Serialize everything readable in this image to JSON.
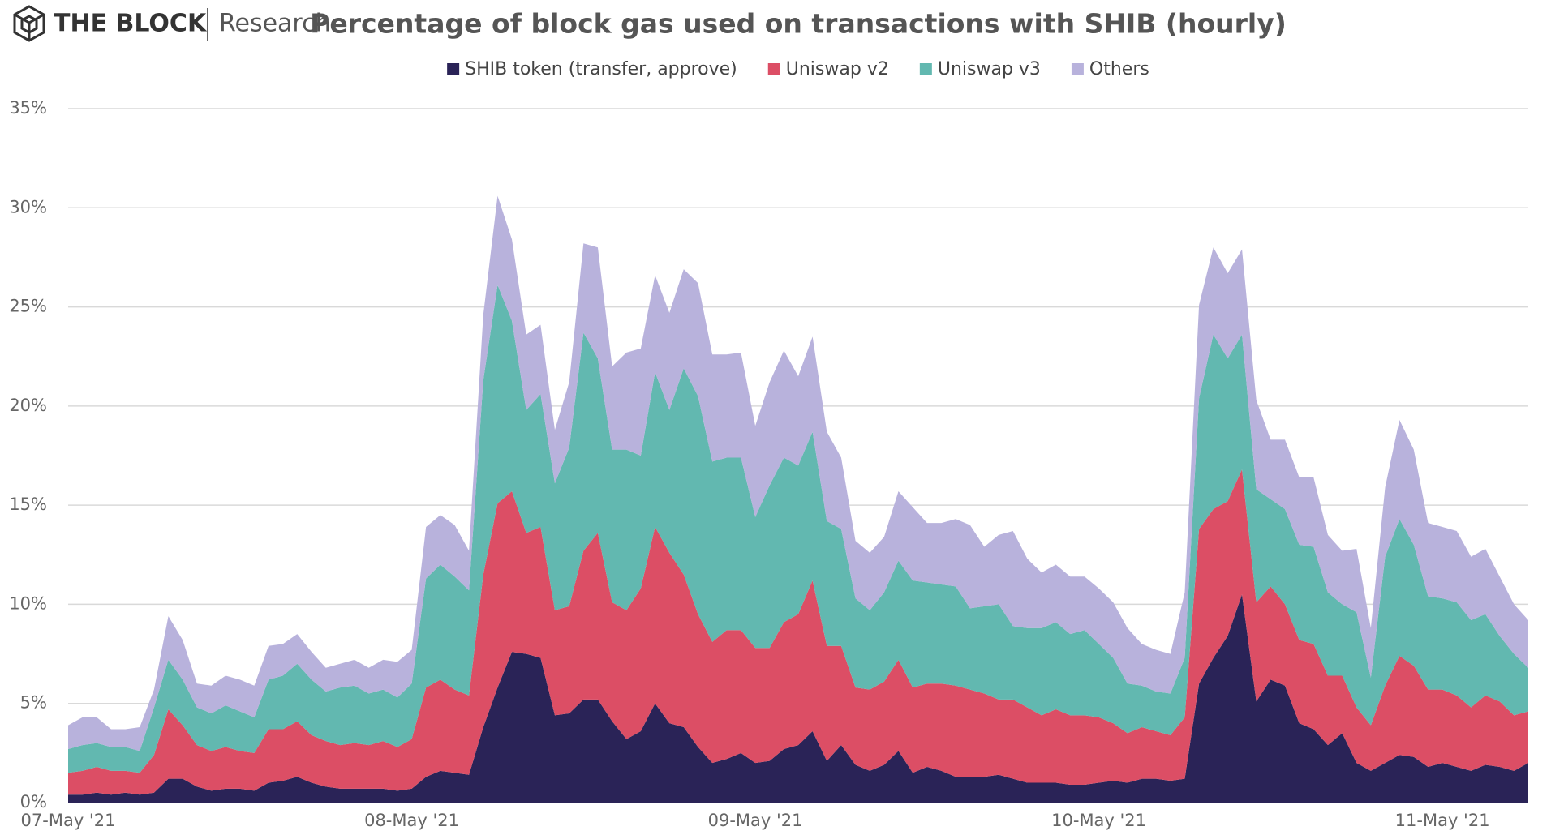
{
  "chart_data": {
    "type": "stacked-area",
    "brand": "THE BLOCK",
    "brand_sub": "Research",
    "title": "Percentage of block gas used on transactions with SHIB (hourly)",
    "categories": [
      "07-May '21",
      null,
      null,
      null,
      null,
      null,
      null,
      null,
      null,
      null,
      null,
      null,
      null,
      null,
      null,
      null,
      null,
      null,
      null,
      null,
      null,
      null,
      null,
      null,
      "08-May '21",
      null,
      null,
      null,
      null,
      null,
      null,
      null,
      null,
      null,
      null,
      null,
      null,
      null,
      null,
      null,
      null,
      null,
      null,
      null,
      null,
      null,
      null,
      null,
      "09-May '21",
      null,
      null,
      null,
      null,
      null,
      null,
      null,
      null,
      null,
      null,
      null,
      null,
      null,
      null,
      null,
      null,
      null,
      null,
      null,
      null,
      null,
      null,
      null,
      "10-May '21",
      null,
      null,
      null,
      null,
      null,
      null,
      null,
      null,
      null,
      null,
      null,
      null,
      null,
      null,
      null,
      null,
      null,
      null,
      null,
      null,
      null,
      null,
      null,
      "11-May '21",
      null,
      null,
      null,
      null,
      null,
      null
    ],
    "series": [
      {
        "name": "SHIB token (transfer, approve)",
        "color": "#2a2357",
        "values": [
          0.4,
          0.4,
          0.5,
          0.4,
          0.5,
          0.4,
          0.5,
          1.2,
          1.2,
          0.8,
          0.6,
          0.7,
          0.7,
          0.6,
          1.0,
          1.1,
          1.3,
          1.0,
          0.8,
          0.7,
          0.7,
          0.7,
          0.7,
          0.6,
          0.7,
          1.3,
          1.6,
          1.5,
          1.4,
          3.8,
          5.8,
          7.6,
          7.5,
          7.3,
          4.4,
          4.5,
          5.2,
          5.2,
          4.1,
          3.2,
          3.6,
          5.0,
          4.0,
          3.8,
          2.8,
          2.0,
          2.2,
          2.5,
          2.0,
          2.1,
          2.7,
          2.9,
          3.6,
          2.1,
          2.9,
          1.9,
          1.6,
          1.9,
          2.6,
          1.5,
          1.8,
          1.6,
          1.3,
          1.3,
          1.3,
          1.4,
          1.2,
          1.0,
          1.0,
          1.0,
          0.9,
          0.9,
          1.0,
          1.1,
          1.0,
          1.2,
          1.2,
          1.1,
          1.2,
          6.0,
          7.3,
          8.4,
          10.5,
          5.1,
          6.2,
          5.9,
          4.0,
          3.7,
          2.9,
          3.5,
          2.0,
          1.6,
          2.0,
          2.4,
          2.3,
          1.8,
          2.0,
          1.8,
          1.6,
          1.9,
          1.8,
          1.6,
          2.0
        ]
      },
      {
        "name": "Uniswap v2",
        "color": "#dc4e65",
        "values": [
          1.1,
          1.2,
          1.3,
          1.2,
          1.1,
          1.1,
          1.9,
          3.5,
          2.7,
          2.1,
          2.0,
          2.1,
          1.9,
          1.9,
          2.7,
          2.6,
          2.8,
          2.4,
          2.3,
          2.2,
          2.3,
          2.2,
          2.4,
          2.2,
          2.5,
          4.5,
          4.6,
          4.2,
          4.0,
          7.7,
          9.3,
          8.1,
          6.1,
          6.6,
          5.3,
          5.4,
          7.5,
          8.4,
          6.0,
          6.5,
          7.2,
          8.9,
          8.6,
          7.7,
          6.7,
          6.1,
          6.5,
          6.2,
          5.8,
          5.7,
          6.4,
          6.6,
          7.6,
          5.8,
          5.0,
          3.9,
          4.1,
          4.2,
          4.6,
          4.3,
          4.2,
          4.4,
          4.6,
          4.4,
          4.2,
          3.8,
          4.0,
          3.8,
          3.4,
          3.7,
          3.5,
          3.5,
          3.3,
          2.9,
          2.5,
          2.6,
          2.4,
          2.3,
          3.1,
          7.8,
          7.5,
          6.8,
          6.3,
          5.0,
          4.7,
          4.1,
          4.2,
          4.3,
          3.5,
          2.9,
          2.8,
          2.3,
          3.9,
          5.0,
          4.6,
          3.9,
          3.7,
          3.6,
          3.2,
          3.5,
          3.3,
          2.8,
          2.6
        ]
      },
      {
        "name": "Uniswap v3",
        "color": "#62b8b0",
        "values": [
          1.2,
          1.3,
          1.2,
          1.2,
          1.2,
          1.1,
          2.4,
          2.5,
          2.3,
          1.9,
          1.9,
          2.1,
          2.0,
          1.8,
          2.5,
          2.7,
          2.9,
          2.8,
          2.5,
          2.9,
          2.9,
          2.6,
          2.6,
          2.5,
          2.8,
          5.5,
          5.8,
          5.7,
          5.3,
          9.8,
          11.0,
          8.6,
          6.2,
          6.7,
          6.4,
          8.0,
          11.0,
          8.8,
          7.7,
          8.1,
          6.7,
          7.8,
          7.2,
          10.4,
          11.0,
          9.1,
          8.7,
          8.7,
          6.6,
          8.2,
          8.3,
          7.5,
          7.5,
          6.3,
          5.9,
          4.5,
          4.0,
          4.5,
          5.0,
          5.4,
          5.1,
          5.0,
          5.0,
          4.1,
          4.4,
          4.8,
          3.7,
          4.0,
          4.4,
          4.4,
          4.1,
          4.3,
          3.7,
          3.3,
          2.5,
          2.1,
          2.0,
          2.1,
          3.0,
          6.6,
          8.8,
          7.2,
          6.8,
          5.7,
          4.4,
          4.8,
          4.8,
          4.9,
          4.2,
          3.6,
          4.8,
          2.4,
          6.5,
          6.9,
          6.1,
          4.7,
          4.6,
          4.7,
          4.4,
          4.1,
          3.3,
          3.1,
          2.2
        ]
      },
      {
        "name": "Others",
        "color": "#b8b2dc",
        "values": [
          1.2,
          1.4,
          1.3,
          0.9,
          0.9,
          1.2,
          0.9,
          2.2,
          2.0,
          1.2,
          1.4,
          1.5,
          1.6,
          1.6,
          1.7,
          1.6,
          1.5,
          1.4,
          1.2,
          1.2,
          1.3,
          1.3,
          1.5,
          1.8,
          1.7,
          2.6,
          2.5,
          2.6,
          2.0,
          3.3,
          4.5,
          4.1,
          3.8,
          3.5,
          2.7,
          3.3,
          4.5,
          5.6,
          4.2,
          4.9,
          5.4,
          4.9,
          4.9,
          5.0,
          5.7,
          5.4,
          5.2,
          5.3,
          4.6,
          5.2,
          5.4,
          4.5,
          4.8,
          4.5,
          3.6,
          2.9,
          2.9,
          2.8,
          3.5,
          3.7,
          3.0,
          3.1,
          3.4,
          4.2,
          3.0,
          3.5,
          4.8,
          3.5,
          2.8,
          2.9,
          2.9,
          2.7,
          2.8,
          2.8,
          2.8,
          2.1,
          2.1,
          2.0,
          3.3,
          4.7,
          4.4,
          4.3,
          4.3,
          4.5,
          3.0,
          3.5,
          3.4,
          3.5,
          2.9,
          2.7,
          3.2,
          2.5,
          3.5,
          5.0,
          4.8,
          3.7,
          3.6,
          3.6,
          3.2,
          3.3,
          3.0,
          2.5,
          2.4
        ]
      }
    ],
    "ylim": [
      0,
      35
    ],
    "yticks": [
      {
        "value": 0,
        "label": "0%"
      },
      {
        "value": 5,
        "label": "5%"
      },
      {
        "value": 10,
        "label": "10%"
      },
      {
        "value": 15,
        "label": "15%"
      },
      {
        "value": 20,
        "label": "20%"
      },
      {
        "value": 25,
        "label": "25%"
      },
      {
        "value": 30,
        "label": "30%"
      },
      {
        "value": 35,
        "label": "35%"
      }
    ],
    "grid": true
  }
}
